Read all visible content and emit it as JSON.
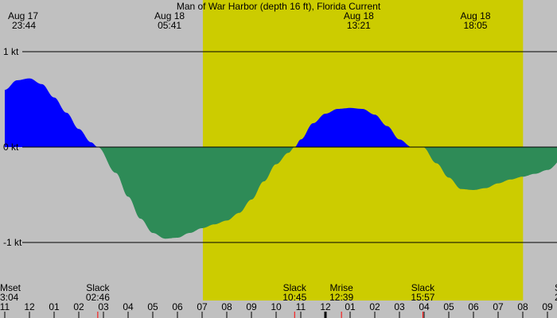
{
  "chart_data": {
    "type": "area",
    "title": "Man of War Harbor (depth 16 ft), Florida Current",
    "y_unit": "kt",
    "ylim": [
      -1.65,
      1.0
    ],
    "y_ticks": [
      {
        "value": 1,
        "label": "1 kt"
      },
      {
        "value": 0,
        "label": "0 kt"
      },
      {
        "value": -1,
        "label": "-1 kt"
      }
    ],
    "x_unit": "hour",
    "xlim": [
      11.0,
      33.65
    ],
    "x_ticks": [
      {
        "hour": 11,
        "label": "11"
      },
      {
        "hour": 12,
        "label": "12"
      },
      {
        "hour": 13,
        "label": "01"
      },
      {
        "hour": 14,
        "label": "02"
      },
      {
        "hour": 15,
        "label": "03"
      },
      {
        "hour": 16,
        "label": "04"
      },
      {
        "hour": 17,
        "label": "05"
      },
      {
        "hour": 18,
        "label": "06"
      },
      {
        "hour": 19,
        "label": "07"
      },
      {
        "hour": 20,
        "label": "08"
      },
      {
        "hour": 21,
        "label": "09"
      },
      {
        "hour": 22,
        "label": "10"
      },
      {
        "hour": 23,
        "label": "11"
      },
      {
        "hour": 24,
        "label": "12"
      },
      {
        "hour": 25,
        "label": "01"
      },
      {
        "hour": 26,
        "label": "02"
      },
      {
        "hour": 27,
        "label": "03"
      },
      {
        "hour": 28,
        "label": "04"
      },
      {
        "hour": 29,
        "label": "05"
      },
      {
        "hour": 30,
        "label": "06"
      },
      {
        "hour": 31,
        "label": "07"
      },
      {
        "hour": 32,
        "label": "08"
      },
      {
        "hour": 33,
        "label": "09"
      }
    ],
    "daylight": [
      {
        "start_hour": 19.03,
        "end_hour": 32.01
      }
    ],
    "series": [
      {
        "x": [
          11.0,
          11.5,
          12.0,
          12.5,
          13.0,
          13.5,
          14.0,
          14.5,
          14.77,
          15.5,
          16.0,
          16.5,
          17.0,
          17.5,
          18.0,
          18.5,
          19.0,
          19.5,
          20.0,
          20.5,
          21.0,
          21.5,
          22.0,
          22.5,
          22.75,
          23.0,
          23.5,
          24.0,
          24.5,
          25.0,
          25.5,
          26.0,
          26.5,
          27.0,
          27.5,
          27.95,
          28.5,
          29.0,
          29.5,
          30.0,
          30.5,
          31.0,
          31.5,
          32.0,
          32.5,
          33.0,
          33.65
        ],
        "y": [
          0.6,
          0.7,
          0.72,
          0.66,
          0.52,
          0.36,
          0.19,
          0.05,
          0.0,
          -0.27,
          -0.52,
          -0.75,
          -0.9,
          -0.96,
          -0.95,
          -0.9,
          -0.85,
          -0.81,
          -0.77,
          -0.69,
          -0.55,
          -0.36,
          -0.18,
          -0.06,
          0.0,
          0.08,
          0.25,
          0.35,
          0.4,
          0.41,
          0.4,
          0.34,
          0.22,
          0.08,
          0.0,
          0.0,
          -0.17,
          -0.32,
          -0.44,
          -0.45,
          -0.43,
          -0.38,
          -0.34,
          -0.31,
          -0.28,
          -0.24,
          -0.12
        ]
      }
    ],
    "top_events": [
      {
        "hour": 11.0,
        "date": "Aug 17",
        "time": "23:44"
      },
      {
        "hour": 17.68,
        "date": "Aug 18",
        "time": "05:41"
      },
      {
        "hour": 25.35,
        "date": "Aug 18",
        "time": "13:21"
      },
      {
        "hour": 30.08,
        "date": "Aug 18",
        "time": "18:05"
      }
    ],
    "bottom_events": [
      {
        "hour": 11.0,
        "name": "Mset",
        "time": "3:04"
      },
      {
        "hour": 14.77,
        "name": "Slack",
        "time": "02:46"
      },
      {
        "hour": 22.75,
        "name": "Slack",
        "time": "10:45"
      },
      {
        "hour": 24.65,
        "name": "Mrise",
        "time": "12:39"
      },
      {
        "hour": 27.95,
        "name": "Slack",
        "time": "15:57"
      },
      {
        "hour": 33.65,
        "name": "S",
        "time": "2"
      }
    ],
    "colors": {
      "night": "#c0c0c0",
      "daylight": "#cccc00",
      "flood": "#0000ff",
      "ebb": "#2e8b57",
      "grid": "#000000",
      "event_tick": "#ff0000",
      "midnight_tick": "#000000"
    }
  }
}
